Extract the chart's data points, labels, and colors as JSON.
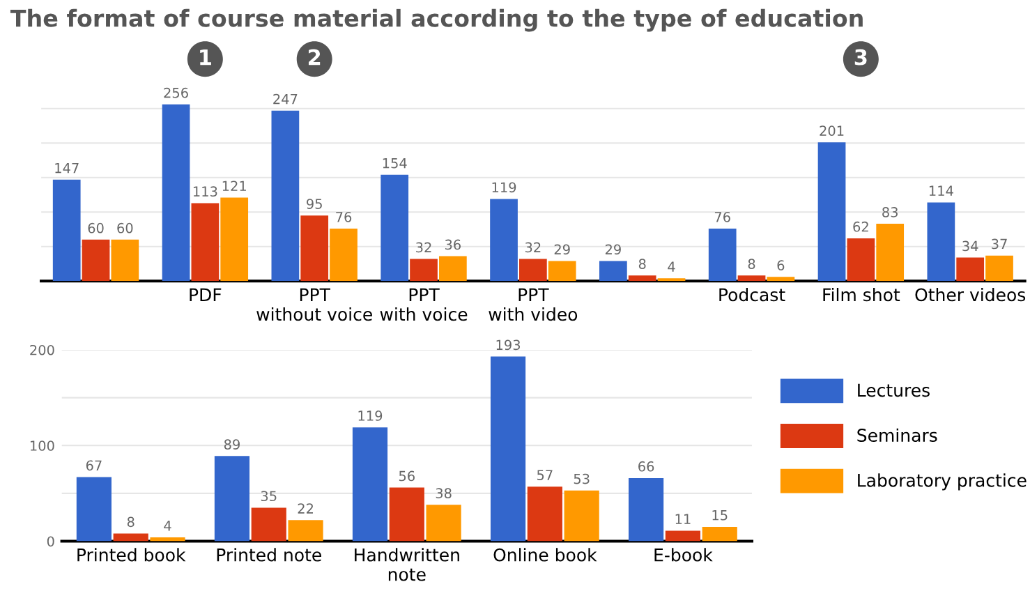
{
  "chart_data": [
    {
      "type": "bar",
      "title": "The format of course material according to the type of education",
      "categories": [
        null,
        "PDF",
        "PPT\nwithout voice",
        "PPT\nwith voice",
        "PPT\nwith video",
        null,
        "Podcast",
        "Film shot",
        "Other videos"
      ],
      "series": [
        {
          "color": "#3366cc",
          "values": [
            147,
            256,
            247,
            154,
            119,
            29,
            76,
            201,
            114
          ]
        },
        {
          "color": "#dc3912",
          "values": [
            60,
            113,
            95,
            32,
            32,
            8,
            8,
            62,
            34
          ]
        },
        {
          "color": "#ff9900",
          "values": [
            60,
            121,
            76,
            36,
            29,
            4,
            6,
            83,
            37
          ]
        }
      ],
      "ylim": [
        0,
        260
      ],
      "yticks": [
        {
          "value": 0,
          "label": null
        },
        {
          "value": 50,
          "label": null
        },
        {
          "value": 100,
          "label": null
        },
        {
          "value": 150,
          "label": null
        },
        {
          "value": 200,
          "label": null
        },
        {
          "value": 250,
          "label": null
        }
      ],
      "tick_labels": "x",
      "grid": "y",
      "data_labels": true,
      "annotations": [
        "1",
        "2",
        "3"
      ]
    },
    {
      "type": "bar",
      "categories": [
        "Printed book",
        "Printed note",
        "Handwritten\nnote",
        "Online book",
        "E-book"
      ],
      "series": [
        {
          "name": "Lectures",
          "color": "#3366cc",
          "values": [
            67,
            89,
            119,
            193,
            66
          ]
        },
        {
          "name": "Seminars",
          "color": "#dc3912",
          "values": [
            8,
            35,
            56,
            57,
            11
          ]
        },
        {
          "name": "Laboratory practice",
          "color": "#ff9900",
          "values": [
            4,
            22,
            38,
            53,
            15
          ]
        }
      ],
      "ylim": [
        0,
        200
      ],
      "yticks": [
        0,
        {
          "value": 50,
          "label": null
        },
        100,
        {
          "value": 150,
          "label": null
        },
        200
      ],
      "grid": "y",
      "data_labels": true,
      "legend": "right"
    }
  ]
}
